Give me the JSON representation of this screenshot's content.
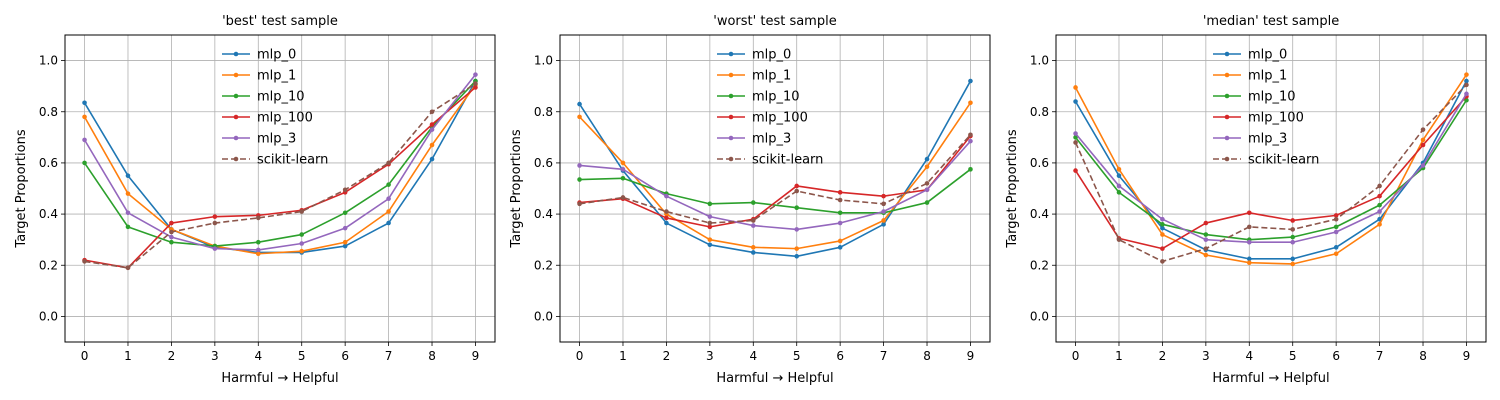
{
  "figure": {
    "ylabel": "Target Proportions",
    "xlabel": "Harmful → Helpful"
  },
  "chart_data": [
    {
      "type": "line",
      "title": "'best' test sample",
      "xlabel": "Harmful → Helpful",
      "ylabel": "Target Proportions",
      "x": [
        0,
        1,
        2,
        3,
        4,
        5,
        6,
        7,
        8,
        9
      ],
      "xticks": [
        "0",
        "1",
        "2",
        "3",
        "4",
        "5",
        "6",
        "7",
        "8",
        "9"
      ],
      "yticks": [
        "0.0",
        "0.2",
        "0.4",
        "0.6",
        "0.8",
        "1.0"
      ],
      "ylim": [
        -0.1,
        1.1
      ],
      "xlim": [
        -0.45,
        9.45
      ],
      "grid": true,
      "legend_position": "top-center",
      "series": [
        {
          "name": "mlp_0",
          "color": "#1f77b4",
          "dashed": false,
          "values": [
            0.835,
            0.55,
            0.34,
            0.27,
            0.25,
            0.25,
            0.275,
            0.365,
            0.615,
            0.92
          ]
        },
        {
          "name": "mlp_1",
          "color": "#ff7f0e",
          "dashed": false,
          "values": [
            0.78,
            0.48,
            0.34,
            0.275,
            0.245,
            0.255,
            0.29,
            0.41,
            0.67,
            0.905
          ]
        },
        {
          "name": "mlp_10",
          "color": "#2ca02c",
          "dashed": false,
          "values": [
            0.6,
            0.35,
            0.29,
            0.275,
            0.29,
            0.32,
            0.405,
            0.515,
            0.74,
            0.92
          ]
        },
        {
          "name": "mlp_100",
          "color": "#d62728",
          "dashed": false,
          "values": [
            0.22,
            0.19,
            0.365,
            0.39,
            0.395,
            0.415,
            0.485,
            0.595,
            0.75,
            0.895
          ]
        },
        {
          "name": "mlp_3",
          "color": "#9467bd",
          "dashed": false,
          "values": [
            0.69,
            0.405,
            0.31,
            0.265,
            0.26,
            0.285,
            0.345,
            0.46,
            0.73,
            0.945
          ]
        },
        {
          "name": "scikit-learn",
          "color": "#8c564b",
          "dashed": true,
          "values": [
            0.215,
            0.19,
            0.33,
            0.365,
            0.385,
            0.41,
            0.495,
            0.6,
            0.8,
            0.91
          ]
        }
      ]
    },
    {
      "type": "line",
      "title": "'worst' test sample",
      "xlabel": "Harmful → Helpful",
      "ylabel": "Target Proportions",
      "x": [
        0,
        1,
        2,
        3,
        4,
        5,
        6,
        7,
        8,
        9
      ],
      "xticks": [
        "0",
        "1",
        "2",
        "3",
        "4",
        "5",
        "6",
        "7",
        "8",
        "9"
      ],
      "yticks": [
        "0.0",
        "0.2",
        "0.4",
        "0.6",
        "0.8",
        "1.0"
      ],
      "ylim": [
        -0.1,
        1.1
      ],
      "xlim": [
        -0.45,
        9.45
      ],
      "grid": true,
      "legend_position": "top-center",
      "series": [
        {
          "name": "mlp_0",
          "color": "#1f77b4",
          "dashed": false,
          "values": [
            0.83,
            0.57,
            0.365,
            0.28,
            0.25,
            0.235,
            0.27,
            0.36,
            0.615,
            0.92
          ]
        },
        {
          "name": "mlp_1",
          "color": "#ff7f0e",
          "dashed": false,
          "values": [
            0.78,
            0.6,
            0.4,
            0.3,
            0.27,
            0.265,
            0.295,
            0.375,
            0.585,
            0.835
          ]
        },
        {
          "name": "mlp_10",
          "color": "#2ca02c",
          "dashed": false,
          "values": [
            0.535,
            0.54,
            0.48,
            0.44,
            0.445,
            0.425,
            0.405,
            0.405,
            0.445,
            0.575
          ]
        },
        {
          "name": "mlp_100",
          "color": "#d62728",
          "dashed": false,
          "values": [
            0.445,
            0.46,
            0.385,
            0.35,
            0.38,
            0.51,
            0.485,
            0.47,
            0.495,
            0.705
          ]
        },
        {
          "name": "mlp_3",
          "color": "#9467bd",
          "dashed": false,
          "values": [
            0.59,
            0.575,
            0.47,
            0.39,
            0.355,
            0.34,
            0.365,
            0.41,
            0.495,
            0.685
          ]
        },
        {
          "name": "scikit-learn",
          "color": "#8c564b",
          "dashed": true,
          "values": [
            0.44,
            0.465,
            0.41,
            0.365,
            0.375,
            0.49,
            0.455,
            0.44,
            0.52,
            0.71
          ]
        }
      ]
    },
    {
      "type": "line",
      "title": "'median' test sample",
      "xlabel": "Harmful → Helpful",
      "ylabel": "Target Proportions",
      "x": [
        0,
        1,
        2,
        3,
        4,
        5,
        6,
        7,
        8,
        9
      ],
      "xticks": [
        "0",
        "1",
        "2",
        "3",
        "4",
        "5",
        "6",
        "7",
        "8",
        "9"
      ],
      "yticks": [
        "0.0",
        "0.2",
        "0.4",
        "0.6",
        "0.8",
        "1.0"
      ],
      "ylim": [
        -0.1,
        1.1
      ],
      "xlim": [
        -0.45,
        9.45
      ],
      "grid": true,
      "legend_position": "top-center",
      "series": [
        {
          "name": "mlp_0",
          "color": "#1f77b4",
          "dashed": false,
          "values": [
            0.84,
            0.55,
            0.345,
            0.26,
            0.225,
            0.225,
            0.27,
            0.38,
            0.6,
            0.92
          ]
        },
        {
          "name": "mlp_1",
          "color": "#ff7f0e",
          "dashed": false,
          "values": [
            0.895,
            0.575,
            0.32,
            0.24,
            0.21,
            0.205,
            0.245,
            0.36,
            0.69,
            0.945
          ]
        },
        {
          "name": "mlp_10",
          "color": "#2ca02c",
          "dashed": false,
          "values": [
            0.7,
            0.485,
            0.36,
            0.32,
            0.3,
            0.31,
            0.35,
            0.435,
            0.58,
            0.845
          ]
        },
        {
          "name": "mlp_100",
          "color": "#d62728",
          "dashed": false,
          "values": [
            0.57,
            0.305,
            0.265,
            0.365,
            0.405,
            0.375,
            0.395,
            0.47,
            0.67,
            0.86
          ]
        },
        {
          "name": "mlp_3",
          "color": "#9467bd",
          "dashed": false,
          "values": [
            0.715,
            0.51,
            0.38,
            0.3,
            0.29,
            0.29,
            0.33,
            0.41,
            0.59,
            0.87
          ]
        },
        {
          "name": "scikit-learn",
          "color": "#8c564b",
          "dashed": true,
          "values": [
            0.68,
            0.3,
            0.215,
            0.265,
            0.35,
            0.34,
            0.38,
            0.51,
            0.73,
            0.905
          ]
        }
      ]
    }
  ]
}
